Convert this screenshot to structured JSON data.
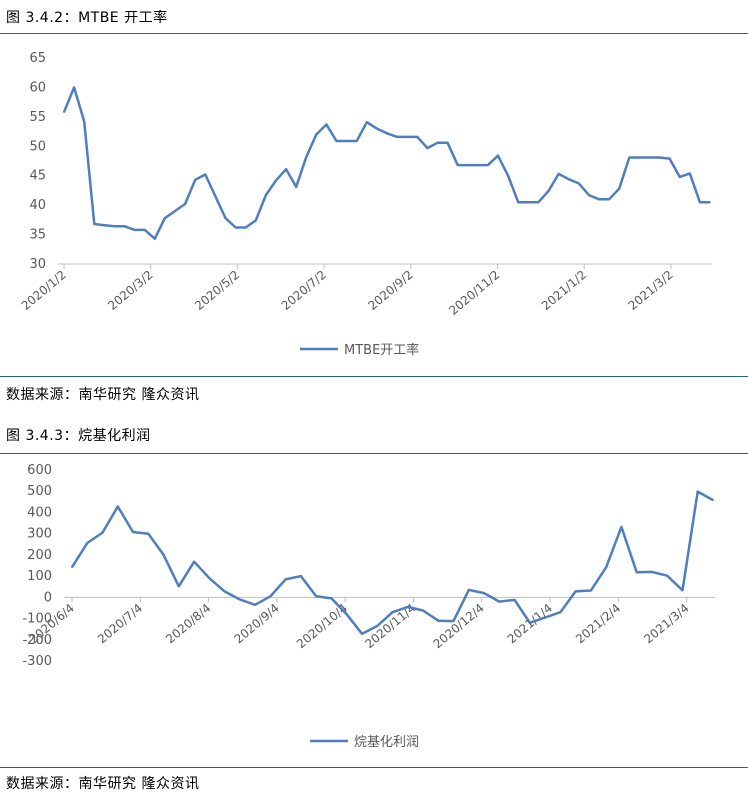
{
  "fig1": {
    "caption": "图 3.4.2：MTBE 开工率",
    "source": "数据来源：南华研究 隆众资讯"
  },
  "fig2": {
    "caption": "图 3.4.3：烷基化利润",
    "source": "数据来源：南华研究 隆众资讯"
  },
  "line_color": "#4f7ebd",
  "chart_data": [
    {
      "type": "line",
      "ylim": [
        30,
        65
      ],
      "yticks": [
        30,
        35,
        40,
        45,
        50,
        55,
        60,
        65
      ],
      "x_tick_labels": [
        "2020/1/2",
        "2020/3/2",
        "2020/5/2",
        "2020/7/2",
        "2020/9/2",
        "2020/11/2",
        "2021/1/2",
        "2021/3/2"
      ],
      "series": [
        {
          "name": "MTBE开工率",
          "values": [
            55.8,
            60.0,
            54.2,
            36.8,
            36.6,
            36.4,
            36.4,
            35.8,
            35.8,
            34.3,
            37.8,
            39.0,
            40.2,
            44.3,
            45.2,
            41.5,
            37.8,
            36.2,
            36.2,
            37.4,
            41.7,
            44.2,
            46.1,
            43.1,
            48.2,
            52.0,
            53.7,
            50.9,
            50.9,
            50.9,
            54.1,
            53.0,
            52.2,
            51.6,
            51.6,
            51.6,
            49.7,
            50.6,
            50.6,
            46.8,
            46.8,
            46.8,
            46.8,
            48.4,
            45.0,
            40.5,
            40.5,
            40.5,
            42.4,
            45.3,
            44.4,
            43.7,
            41.7,
            41.0,
            41.0,
            42.8,
            48.1,
            48.1,
            48.1,
            48.1,
            47.9,
            44.8,
            45.4,
            40.5,
            40.5
          ]
        }
      ]
    },
    {
      "type": "line",
      "ylim": [
        -300,
        600
      ],
      "yticks": [
        -300,
        -200,
        -100,
        0,
        100,
        200,
        300,
        400,
        500,
        600
      ],
      "x_tick_labels": [
        "2020/6/4",
        "2020/7/4",
        "2020/8/4",
        "2020/9/4",
        "2020/10/4",
        "2020/11/4",
        "2020/12/4",
        "2021/1/4",
        "2021/2/4",
        "2021/3/4"
      ],
      "series": [
        {
          "name": "烷基化利润",
          "values": [
            142,
            256,
            305,
            428,
            308,
            300,
            200,
            52,
            168,
            90,
            28,
            -10,
            -35,
            5,
            85,
            100,
            5,
            -5,
            -80,
            -172,
            -135,
            -70,
            -45,
            -62,
            -110,
            -112,
            35,
            20,
            -20,
            -12,
            -120,
            -95,
            -70,
            28,
            32,
            142,
            332,
            118,
            120,
            102,
            33,
            498,
            458
          ]
        }
      ]
    }
  ]
}
